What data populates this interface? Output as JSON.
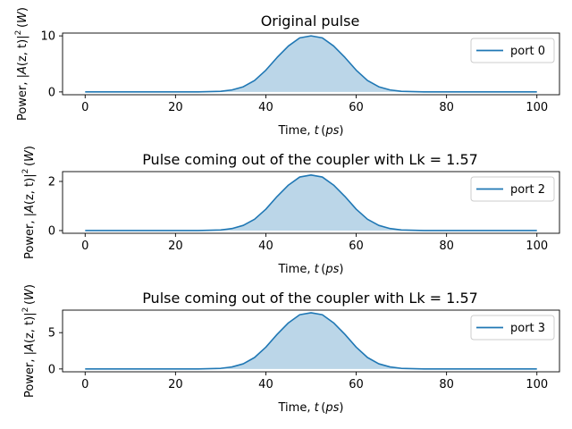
{
  "chart_data": [
    {
      "type": "area",
      "title": "Original pulse",
      "xlabel_prefix": "Time, ",
      "xlabel_var": "t",
      "xlabel_unit": "ps",
      "ylabel": "Power, |A(z, t)|² (W)",
      "ylabel_parts": {
        "prefix": "Power, ",
        "A": "A",
        "args": "(z, t)",
        "exp": "2",
        "unit": "W"
      },
      "xlim": [
        -5,
        105
      ],
      "ylim": [
        -0.5,
        10.5
      ],
      "xticks": [
        "0",
        "20",
        "40",
        "60",
        "80",
        "100"
      ],
      "yticks": [
        "0",
        "10"
      ],
      "legend_placement": "top-right",
      "color": "#1f77b4",
      "series": [
        {
          "name": "port 0",
          "x": [
            0,
            5,
            10,
            15,
            20,
            25,
            30,
            32.5,
            35,
            37.5,
            40,
            42.5,
            45,
            47.5,
            50,
            52.5,
            55,
            57.5,
            60,
            62.5,
            65,
            67.5,
            70,
            75,
            80,
            85,
            90,
            95,
            100
          ],
          "values": [
            0,
            0,
            0,
            0,
            0,
            0.01,
            0.11,
            0.36,
            0.92,
            2.04,
            3.88,
            6.16,
            8.2,
            9.64,
            10.0,
            9.64,
            8.2,
            6.16,
            3.88,
            2.04,
            0.92,
            0.36,
            0.11,
            0.01,
            0,
            0,
            0,
            0,
            0
          ]
        }
      ]
    },
    {
      "type": "area",
      "title": "Pulse coming out of the coupler with Lk = 1.57",
      "xlabel_prefix": "Time, ",
      "xlabel_var": "t",
      "xlabel_unit": "ps",
      "ylabel": "Power, |A(z, t)|² (W)",
      "ylabel_parts": {
        "prefix": "Power, ",
        "A": "A",
        "args": "(z, t)",
        "exp": "2",
        "unit": "W"
      },
      "xlim": [
        -5,
        105
      ],
      "ylim": [
        -0.11,
        2.4
      ],
      "xticks": [
        "0",
        "20",
        "40",
        "60",
        "80",
        "100"
      ],
      "yticks": [
        "0",
        "2"
      ],
      "legend_placement": "top-right",
      "color": "#1f77b4",
      "series": [
        {
          "name": "port 2",
          "x": [
            0,
            5,
            10,
            15,
            20,
            25,
            30,
            32.5,
            35,
            37.5,
            40,
            42.5,
            45,
            47.5,
            50,
            52.5,
            55,
            57.5,
            60,
            62.5,
            65,
            67.5,
            70,
            75,
            80,
            85,
            90,
            95,
            100
          ],
          "values": [
            0,
            0,
            0,
            0,
            0,
            0.002,
            0.025,
            0.082,
            0.21,
            0.46,
            0.87,
            1.39,
            1.85,
            2.18,
            2.26,
            2.18,
            1.85,
            1.39,
            0.87,
            0.46,
            0.21,
            0.082,
            0.025,
            0.002,
            0,
            0,
            0,
            0,
            0
          ]
        }
      ]
    },
    {
      "type": "area",
      "title": "Pulse coming out of the coupler with Lk = 1.57",
      "xlabel_prefix": "Time, ",
      "xlabel_var": "t",
      "xlabel_unit": "ps",
      "ylabel": "Power, |A(z, t)|² (W)",
      "ylabel_parts": {
        "prefix": "Power, ",
        "A": "A",
        "args": "(z, t)",
        "exp": "2",
        "unit": "W"
      },
      "xlim": [
        -5,
        105
      ],
      "ylim": [
        -0.39,
        8.1
      ],
      "xticks": [
        "0",
        "20",
        "40",
        "60",
        "80",
        "100"
      ],
      "yticks": [
        "0",
        "5"
      ],
      "legend_placement": "top-right",
      "color": "#1f77b4",
      "series": [
        {
          "name": "port 3",
          "x": [
            0,
            5,
            10,
            15,
            20,
            25,
            30,
            32.5,
            35,
            37.5,
            40,
            42.5,
            45,
            47.5,
            50,
            52.5,
            55,
            57.5,
            60,
            62.5,
            65,
            67.5,
            70,
            75,
            80,
            85,
            90,
            95,
            100
          ],
          "values": [
            0,
            0,
            0,
            0,
            0,
            0.007,
            0.085,
            0.28,
            0.71,
            1.58,
            3.0,
            4.77,
            6.35,
            7.47,
            7.74,
            7.47,
            6.35,
            4.77,
            3.0,
            1.58,
            0.71,
            0.28,
            0.085,
            0.007,
            0,
            0,
            0,
            0,
            0
          ]
        }
      ]
    }
  ]
}
